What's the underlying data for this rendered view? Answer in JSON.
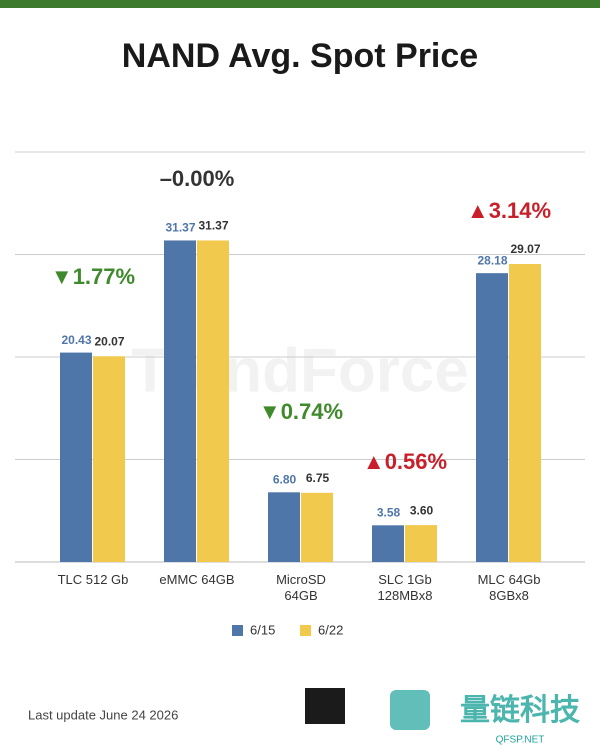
{
  "chart_data": {
    "type": "bar",
    "title": "NAND Avg. Spot Price",
    "categories": [
      "TLC 512 Gb",
      "eMMC 64GB",
      "MicroSD 64GB",
      "SLC 1Gb 128MBx8",
      "MLC 64Gb 8GBx8"
    ],
    "series": [
      {
        "name": "6/15",
        "color": "#4f76a9",
        "values": [
          20.43,
          31.37,
          6.8,
          3.58,
          28.18
        ],
        "value_labels": [
          "20.43",
          "31.37",
          "6.80",
          "3.58",
          "28.18"
        ]
      },
      {
        "name": "6/22",
        "color": "#f1c94c",
        "values": [
          20.07,
          31.37,
          6.75,
          3.6,
          29.07
        ],
        "value_labels": [
          "20.07",
          "31.37",
          "6.75",
          "3.60",
          "29.07"
        ]
      }
    ],
    "annotations": [
      {
        "text": "▼1.77%",
        "color": "#3f8a2c"
      },
      {
        "text": "–0.00%",
        "color": "#333333"
      },
      {
        "text": "▼0.74%",
        "color": "#3f8a2c"
      },
      {
        "text": "▲0.56%",
        "color": "#c8202a"
      },
      {
        "text": "▲3.14%",
        "color": "#c8202a"
      }
    ],
    "ylim": [
      0,
      40
    ],
    "yticks": [
      0,
      10,
      20,
      30,
      40
    ],
    "grid": true,
    "watermark": "TrendForce",
    "footer": "Last update  June 24  2026",
    "brand": "量链科技",
    "brand_site": "QFSP.NET"
  }
}
